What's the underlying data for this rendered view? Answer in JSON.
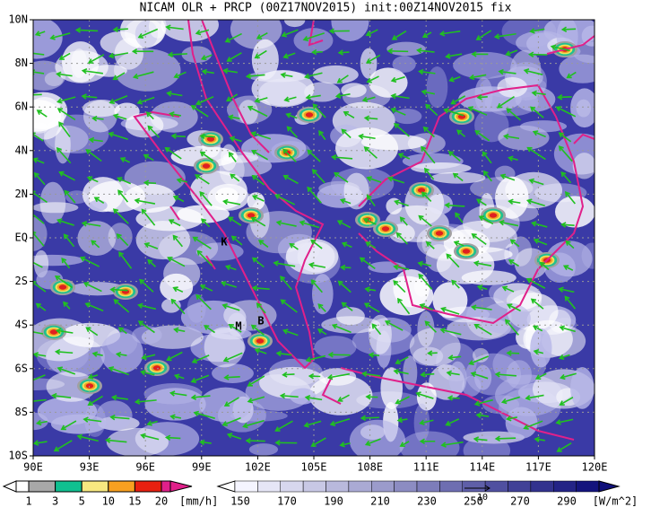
{
  "header": {
    "title": "NICAM OLR + PRCP (00Z17NOV2015) init:00Z14NOV2015 fix"
  },
  "map": {
    "lon_labels": [
      "90E",
      "93E",
      "96E",
      "99E",
      "102E",
      "105E",
      "108E",
      "111E",
      "114E",
      "117E",
      "120E"
    ],
    "lat_labels": [
      "10N",
      "8N",
      "6N",
      "4N",
      "2N",
      "EQ",
      "2S",
      "4S",
      "6S",
      "8S",
      "10S"
    ],
    "markers": [
      "K",
      "M",
      "B"
    ]
  },
  "legend": {
    "precip": {
      "ticks": [
        1,
        3,
        5,
        10,
        15,
        20
      ],
      "unit": "[mm/h]"
    },
    "olr": {
      "ticks": [
        150,
        170,
        190,
        210,
        230,
        250,
        270,
        290
      ],
      "unit": "[W/m^2]"
    },
    "vector_ref": "10"
  }
}
